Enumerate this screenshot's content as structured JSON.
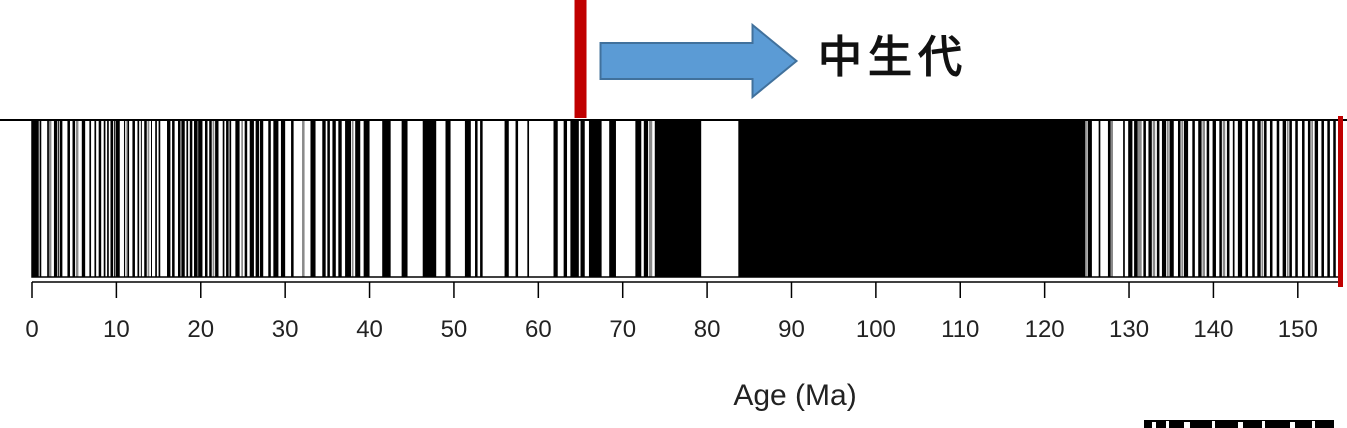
{
  "chart_data": {
    "type": "bar",
    "xlabel": "Age (Ma)",
    "xlim": [
      0,
      155
    ],
    "x_ticks": [
      0,
      10,
      20,
      30,
      40,
      50,
      60,
      70,
      80,
      90,
      100,
      110,
      120,
      130,
      140,
      150
    ],
    "grid": false,
    "legend": "none",
    "polarity_colors": {
      "normal": "#000000",
      "reversed": "#ffffff",
      "uncertain": "#8a8a8a"
    },
    "normal_polarity_intervals_ma": [
      [
        0.0,
        0.8
      ],
      [
        0.9,
        1.1
      ],
      [
        1.8,
        2.0
      ],
      [
        2.6,
        3.0
      ],
      [
        3.1,
        3.2
      ],
      [
        3.3,
        3.6
      ],
      [
        4.2,
        4.5
      ],
      [
        4.8,
        5.1
      ],
      [
        5.9,
        6.3
      ],
      [
        6.8,
        7.0
      ],
      [
        7.4,
        7.6
      ],
      [
        7.9,
        8.2
      ],
      [
        8.5,
        8.7
      ],
      [
        8.9,
        9.1
      ],
      [
        9.3,
        9.6
      ],
      [
        9.7,
        9.8
      ],
      [
        9.9,
        10.4
      ],
      [
        10.9,
        11.0
      ],
      [
        11.3,
        11.5
      ],
      [
        11.9,
        12.2
      ],
      [
        12.5,
        12.7
      ],
      [
        12.9,
        13.0
      ],
      [
        13.3,
        13.6
      ],
      [
        14.1,
        14.2
      ],
      [
        14.6,
        14.8
      ],
      [
        15.0,
        15.2
      ],
      [
        16.0,
        16.4
      ],
      [
        16.6,
        16.9
      ],
      [
        17.3,
        17.6
      ],
      [
        17.7,
        18.1
      ],
      [
        18.3,
        18.5
      ],
      [
        18.7,
        19.0
      ],
      [
        19.2,
        19.6
      ],
      [
        19.7,
        20.2
      ],
      [
        20.5,
        20.8
      ],
      [
        21.0,
        21.3
      ],
      [
        21.7,
        22.1
      ],
      [
        22.6,
        22.8
      ],
      [
        23.0,
        23.3
      ],
      [
        23.4,
        23.6
      ],
      [
        24.1,
        24.6
      ],
      [
        25.2,
        25.5
      ],
      [
        25.8,
        26.3
      ],
      [
        26.5,
        26.9
      ],
      [
        27.0,
        27.4
      ],
      [
        28.0,
        28.3
      ],
      [
        28.6,
        29.2
      ],
      [
        29.5,
        30.0
      ],
      [
        30.7,
        31.0
      ],
      [
        33.0,
        33.6
      ],
      [
        34.4,
        34.8
      ],
      [
        35.0,
        35.3
      ],
      [
        35.6,
        36.0
      ],
      [
        36.3,
        36.7
      ],
      [
        37.1,
        37.8
      ],
      [
        38.3,
        38.9
      ],
      [
        39.3,
        40.0
      ],
      [
        41.5,
        42.5
      ],
      [
        43.8,
        44.5
      ],
      [
        46.3,
        47.9
      ],
      [
        49.0,
        49.6
      ],
      [
        51.3,
        52.0
      ],
      [
        52.5,
        52.8
      ],
      [
        53.1,
        53.4
      ],
      [
        56.0,
        56.5
      ],
      [
        57.3,
        57.6
      ],
      [
        58.7,
        58.9
      ],
      [
        61.8,
        62.3
      ],
      [
        63.0,
        63.4
      ],
      [
        63.8,
        64.8
      ],
      [
        65.0,
        65.5
      ],
      [
        66.0,
        67.5
      ],
      [
        68.4,
        69.2
      ],
      [
        71.5,
        72.2
      ],
      [
        72.5,
        73.0
      ],
      [
        73.8,
        79.3
      ],
      [
        83.7,
        124.8
      ],
      [
        125.1,
        125.6
      ],
      [
        126.4,
        126.6
      ],
      [
        127.5,
        127.8
      ],
      [
        129.3,
        129.5
      ],
      [
        129.9,
        130.4
      ],
      [
        130.6,
        131.0
      ],
      [
        131.7,
        132.0
      ],
      [
        132.3,
        132.7
      ],
      [
        133.3,
        133.6
      ],
      [
        133.9,
        134.4
      ],
      [
        134.8,
        135.3
      ],
      [
        135.8,
        136.1
      ],
      [
        136.5,
        137.0
      ],
      [
        137.5,
        137.8
      ],
      [
        138.2,
        138.6
      ],
      [
        139.2,
        139.5
      ],
      [
        139.9,
        140.3
      ],
      [
        140.7,
        141.0
      ],
      [
        141.6,
        141.9
      ],
      [
        142.3,
        142.5
      ],
      [
        142.9,
        143.4
      ],
      [
        143.8,
        144.1
      ],
      [
        144.6,
        144.9
      ],
      [
        145.2,
        145.6
      ],
      [
        146.0,
        146.3
      ],
      [
        146.7,
        147.0
      ],
      [
        147.5,
        147.8
      ],
      [
        148.2,
        148.6
      ],
      [
        149.0,
        149.3
      ],
      [
        149.7,
        150.0
      ],
      [
        150.5,
        150.8
      ],
      [
        151.2,
        151.5
      ],
      [
        152.0,
        152.4
      ],
      [
        152.8,
        153.1
      ],
      [
        153.5,
        153.8
      ],
      [
        154.2,
        154.5
      ]
    ],
    "uncertain_intervals_ma": [
      [
        2.0,
        2.3
      ],
      [
        5.2,
        5.5
      ],
      [
        11.1,
        11.2
      ],
      [
        13.7,
        13.9
      ],
      [
        19.6,
        19.7
      ],
      [
        21.4,
        21.6
      ],
      [
        24.8,
        25.0
      ],
      [
        32.0,
        32.3
      ],
      [
        37.9,
        38.1
      ],
      [
        73.1,
        73.5
      ],
      [
        124.8,
        125.0
      ],
      [
        127.8,
        128.1
      ],
      [
        131.0,
        131.5
      ],
      [
        132.8,
        133.1
      ],
      [
        134.5,
        134.7
      ],
      [
        136.2,
        136.4
      ],
      [
        138.7,
        139.0
      ],
      [
        141.1,
        141.4
      ],
      [
        145.7,
        145.9
      ],
      [
        148.7,
        148.9
      ],
      [
        151.6,
        151.8
      ]
    ],
    "annotations": {
      "label": "中生代",
      "boundary_age_ma": 65,
      "end_age_ma": 155,
      "boundary_color": "#c00000",
      "arrow_color": "#5b9bd5",
      "arrow_border": "#41719c"
    }
  }
}
